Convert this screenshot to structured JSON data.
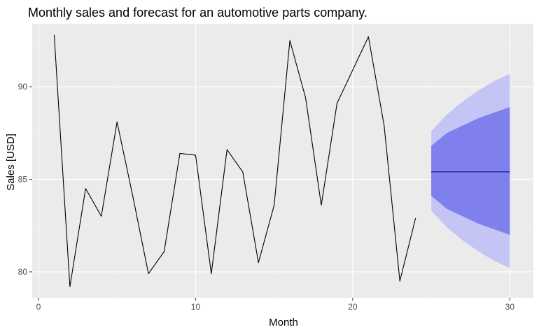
{
  "chart_data": {
    "type": "line",
    "title": "Monthly sales and forecast for an automotive parts company.",
    "xlabel": "Month",
    "ylabel": "Sales [USD]",
    "xlim": [
      -0.4,
      31.5
    ],
    "ylim": [
      78.6,
      93.4
    ],
    "x_ticks": [
      0,
      10,
      20,
      30
    ],
    "y_ticks": [
      80,
      85,
      90
    ],
    "grid": true,
    "legend": "none",
    "series": [
      {
        "x": [
          1,
          2,
          3,
          4,
          5,
          6,
          7,
          8,
          9,
          10,
          11,
          12,
          13,
          14,
          15,
          16,
          17,
          18,
          19,
          20,
          21,
          22,
          23,
          24
        ],
        "values": [
          92.8,
          79.2,
          84.5,
          83.0,
          88.1,
          84.1,
          79.9,
          81.1,
          86.4,
          86.3,
          79.9,
          86.6,
          85.4,
          80.5,
          83.6,
          92.5,
          89.4,
          83.6,
          89.1,
          90.9,
          92.7,
          87.9,
          79.5,
          82.9
        ]
      }
    ],
    "forecast": {
      "x": [
        25,
        26,
        27,
        28,
        29,
        30
      ],
      "mean": [
        85.4,
        85.4,
        85.4,
        85.4,
        85.4,
        85.4
      ],
      "lower80": [
        84.1,
        83.4,
        83.0,
        82.6,
        82.3,
        82.0
      ],
      "upper80": [
        86.8,
        87.5,
        87.9,
        88.3,
        88.6,
        88.9
      ],
      "lower95": [
        83.3,
        82.4,
        81.7,
        81.1,
        80.6,
        80.2
      ],
      "upper95": [
        87.6,
        88.5,
        89.2,
        89.8,
        90.3,
        90.7
      ]
    },
    "colors": {
      "panel": "#ebebeb",
      "grid_major": "#ffffff",
      "grid_minor": "#f4f4f4",
      "series_line": "#000000",
      "forecast_mean": "#00008b",
      "band95": "#c4c4f5",
      "band80": "#7f7fee"
    }
  }
}
